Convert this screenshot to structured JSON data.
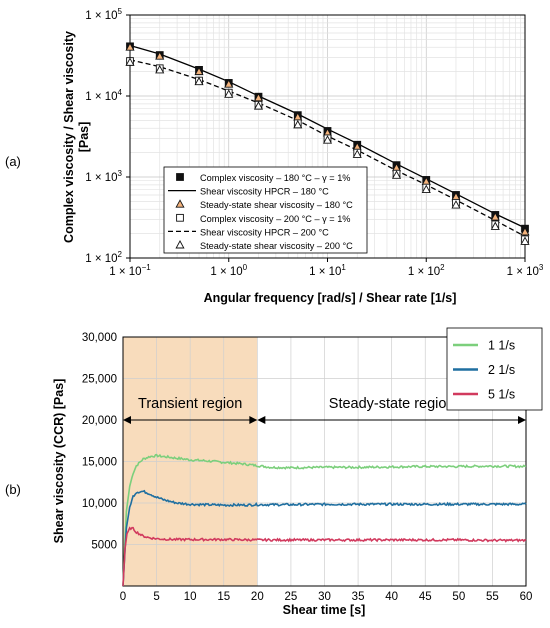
{
  "chart_data": [
    {
      "panel_label": "(a)",
      "type": "line",
      "xscale": "log",
      "yscale": "log",
      "xlim": [
        0.1,
        1000
      ],
      "ylim": [
        100,
        100000
      ],
      "grid": true,
      "xlabel": "Angular frequency [rad/s] / Shear rate [1/s]",
      "ylabel_line1": "Complex viscosity  / Shear viscosity",
      "ylabel_line2": "[Pas]",
      "x_ticks": [
        {
          "value": 0.1,
          "base": "1 × 10",
          "exp": "−1"
        },
        {
          "value": 1,
          "base": "1 × 10",
          "exp": "0"
        },
        {
          "value": 10,
          "base": "1 × 10",
          "exp": "1"
        },
        {
          "value": 100,
          "base": "1 × 10",
          "exp": "2"
        },
        {
          "value": 1000,
          "base": "1 × 10",
          "exp": "3"
        }
      ],
      "y_ticks": [
        {
          "value": 100,
          "base": "1 × 10",
          "exp": "2"
        },
        {
          "value": 1000,
          "base": "1 × 10",
          "exp": "3"
        },
        {
          "value": 10000,
          "base": "1 × 10",
          "exp": "4"
        },
        {
          "value": 100000,
          "base": "1 × 10",
          "exp": "5"
        }
      ],
      "legend_position": "bottom-right",
      "series": [
        {
          "name": "Complex viscosity – 180 °C – γ = 1%",
          "style": "marker",
          "marker": "filled-square",
          "x": [
            0.1,
            0.2,
            0.5,
            1,
            2,
            5,
            10,
            20,
            50,
            100,
            200,
            500,
            1000
          ],
          "y": [
            41000,
            32000,
            21000,
            14500,
            9800,
            5800,
            3700,
            2500,
            1400,
            920,
            600,
            340,
            230
          ]
        },
        {
          "name": "Shear viscosity HPCR – 180 °C",
          "style": "solid",
          "x": [
            0.1,
            0.2,
            0.5,
            1,
            2,
            5,
            10,
            20,
            50,
            100,
            200,
            500,
            1000
          ],
          "y": [
            42000,
            33000,
            21500,
            15000,
            10000,
            6000,
            3900,
            2600,
            1450,
            950,
            620,
            350,
            235
          ]
        },
        {
          "name": "Steady-state shear viscosity – 180 °C",
          "style": "marker",
          "marker": "filled-triangle",
          "x": [
            0.1,
            0.2,
            0.5,
            1,
            2,
            5,
            10,
            20,
            50,
            100,
            200,
            500,
            1000
          ],
          "y": [
            40000,
            31000,
            20000,
            14000,
            9500,
            5500,
            3500,
            2350,
            1300,
            880,
            570,
            320,
            210
          ]
        },
        {
          "name": "Complex viscosity – 200 °C – γ = 1%",
          "style": "marker",
          "marker": "open-square",
          "x": [
            0.1,
            0.2,
            0.5,
            1,
            2,
            5,
            10,
            20,
            50,
            100,
            200,
            500,
            1000
          ],
          "y": [
            27000,
            22000,
            15500,
            11000,
            7800,
            4600,
            3000,
            2000,
            1100,
            740,
            480,
            260,
            170
          ]
        },
        {
          "name": "Shear viscosity HPCR – 200 °C",
          "style": "dashed",
          "x": [
            0.1,
            0.2,
            0.5,
            1,
            2,
            5,
            10,
            20,
            50,
            100,
            200,
            500,
            1000
          ],
          "y": [
            28000,
            23000,
            16000,
            11500,
            8200,
            5000,
            3200,
            2150,
            1200,
            800,
            520,
            290,
            185
          ]
        },
        {
          "name": "Steady-state shear viscosity – 200 °C",
          "style": "marker",
          "marker": "open-triangle",
          "x": [
            0.1,
            0.2,
            0.5,
            1,
            2,
            5,
            10,
            20,
            50,
            100,
            200,
            500,
            1000
          ],
          "y": [
            26000,
            21000,
            15000,
            10500,
            7500,
            4400,
            2850,
            1900,
            1050,
            700,
            450,
            245,
            160
          ]
        }
      ]
    },
    {
      "panel_label": "(b)",
      "type": "line",
      "xlim": [
        0,
        60
      ],
      "ylim": [
        0,
        30000
      ],
      "grid": true,
      "xlabel": "Shear time [s]",
      "ylabel": "Shear viscosity  (CCR) [Pas]",
      "x_ticks": [
        0,
        5,
        10,
        15,
        20,
        25,
        30,
        35,
        40,
        45,
        50,
        55,
        60
      ],
      "y_ticks": [
        {
          "value": 5000,
          "label": "5000"
        },
        {
          "value": 10000,
          "label": "10,000"
        },
        {
          "value": 15000,
          "label": "15,000"
        },
        {
          "value": 20000,
          "label": "20,000"
        },
        {
          "value": 25000,
          "label": "25,000"
        },
        {
          "value": 30000,
          "label": "30,000"
        }
      ],
      "legend_position": "top-right",
      "regions": [
        {
          "label": "Transient region",
          "x_start": 0,
          "x_end": 20,
          "shaded": true,
          "color": "#f8dcbc"
        },
        {
          "label": "Steady-state region",
          "x_start": 20,
          "x_end": 60,
          "shaded": false
        }
      ],
      "region_arrow_y": 20000,
      "series": [
        {
          "name": "1 1/s",
          "color": "#7ccf7c",
          "x": [
            0,
            0.5,
            1,
            1.5,
            2,
            3,
            4,
            5,
            6,
            8,
            10,
            12,
            15,
            18,
            20,
            22,
            25,
            30,
            35,
            40,
            45,
            50,
            55,
            60
          ],
          "y": [
            0,
            9000,
            12000,
            13600,
            14500,
            15300,
            15600,
            15700,
            15600,
            15400,
            15200,
            15100,
            14900,
            14700,
            14500,
            14300,
            14250,
            14300,
            14300,
            14350,
            14400,
            14400,
            14450,
            14400
          ]
        },
        {
          "name": "2 1/s",
          "color": "#1f6fa0",
          "x": [
            0,
            0.5,
            1,
            1.5,
            2,
            3,
            4,
            5,
            6,
            8,
            10,
            12,
            15,
            18,
            20,
            25,
            30,
            35,
            40,
            45,
            50,
            55,
            60
          ],
          "y": [
            0,
            7000,
            9500,
            10800,
            11300,
            11400,
            11100,
            10700,
            10400,
            10000,
            9850,
            9800,
            9750,
            9750,
            9800,
            9800,
            9850,
            9850,
            9850,
            9850,
            9850,
            9850,
            9850
          ]
        },
        {
          "name": "5 1/s",
          "color": "#d13a5e",
          "x": [
            0,
            0.3,
            0.6,
            1,
            1.5,
            2,
            3,
            4,
            5,
            6,
            8,
            10,
            15,
            20,
            25,
            30,
            35,
            40,
            45,
            50,
            55,
            60
          ],
          "y": [
            0,
            4500,
            6300,
            7000,
            6900,
            6500,
            6000,
            5800,
            5700,
            5650,
            5600,
            5600,
            5600,
            5550,
            5550,
            5550,
            5550,
            5550,
            5550,
            5550,
            5500,
            5500
          ]
        }
      ]
    }
  ]
}
